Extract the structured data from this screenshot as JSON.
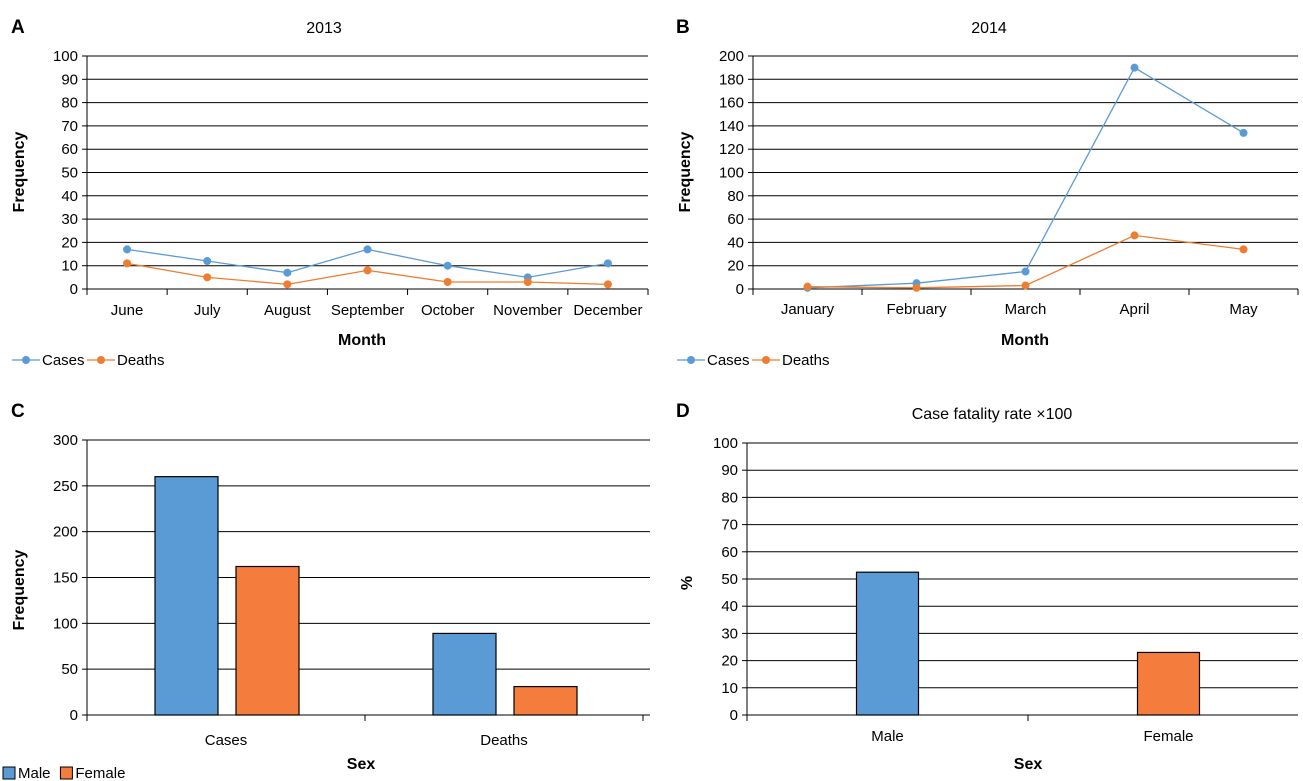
{
  "chart_data": [
    {
      "panel": "A",
      "type": "line",
      "title": "2013",
      "xlabel": "Month",
      "ylabel": "Frequency",
      "categories": [
        "June",
        "July",
        "August",
        "September",
        "October",
        "November",
        "December"
      ],
      "ylim": [
        0,
        100
      ],
      "yticks": [
        0,
        10,
        20,
        30,
        40,
        50,
        60,
        70,
        80,
        90,
        100
      ],
      "grid": true,
      "legend": "bottom-left",
      "series": [
        {
          "name": "Cases",
          "color": "#5b9bd5",
          "values": [
            17,
            12,
            7,
            17,
            10,
            5,
            11
          ]
        },
        {
          "name": "Deaths",
          "color": "#ed7d31",
          "values": [
            11,
            5,
            2,
            8,
            3,
            3,
            2
          ]
        }
      ]
    },
    {
      "panel": "B",
      "type": "line",
      "title": "2014",
      "xlabel": "Month",
      "ylabel": "Frequency",
      "categories": [
        "January",
        "February",
        "March",
        "April",
        "May"
      ],
      "ylim": [
        0,
        200
      ],
      "yticks": [
        0,
        20,
        40,
        60,
        80,
        100,
        120,
        140,
        160,
        180,
        200
      ],
      "grid": true,
      "legend": "bottom-left",
      "series": [
        {
          "name": "Cases",
          "color": "#5b9bd5",
          "values": [
            1,
            5,
            15,
            190,
            134
          ]
        },
        {
          "name": "Deaths",
          "color": "#ed7d31",
          "values": [
            2,
            1,
            3,
            46,
            34
          ]
        }
      ]
    },
    {
      "panel": "C",
      "type": "bar",
      "title": "",
      "xlabel": "Sex",
      "ylabel": "Frequency",
      "categories": [
        "Cases",
        "Deaths"
      ],
      "ylim": [
        0,
        300
      ],
      "yticks": [
        0,
        50,
        100,
        150,
        200,
        250,
        300
      ],
      "grid": true,
      "legend": "bottom-left",
      "series": [
        {
          "name": "Male",
          "color": "#5b9bd5",
          "values": [
            260,
            89
          ]
        },
        {
          "name": "Female",
          "color": "#f47c3c",
          "values": [
            162,
            31
          ]
        }
      ]
    },
    {
      "panel": "D",
      "type": "bar",
      "title": "Case fatality rate ×100",
      "xlabel": "Sex",
      "ylabel": "%",
      "categories": [
        "Male",
        "Female"
      ],
      "ylim": [
        0,
        100
      ],
      "yticks": [
        0,
        10,
        20,
        30,
        40,
        50,
        60,
        70,
        80,
        90,
        100
      ],
      "grid": true,
      "legend": "none",
      "series": [
        {
          "name": "",
          "values": [
            52.5,
            23
          ],
          "colors": [
            "#5b9bd5",
            "#f47c3c"
          ]
        }
      ]
    }
  ]
}
